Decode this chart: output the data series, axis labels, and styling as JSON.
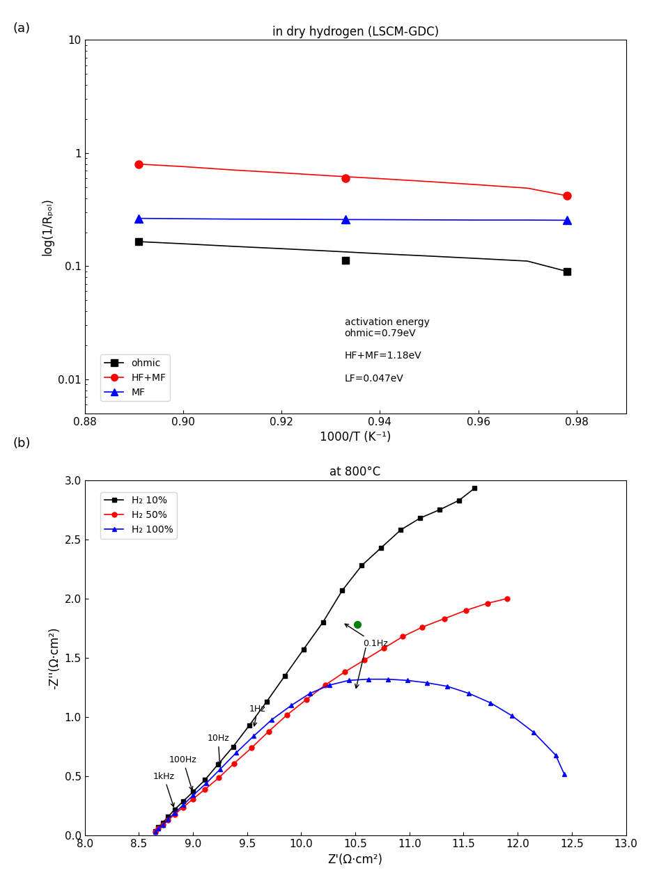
{
  "panel_a": {
    "title": "in dry hydrogen (LSCM-GDC)",
    "xlabel": "1000/T (K⁻¹)",
    "ylabel": "log(1/Rₚₒₗ)",
    "xlim": [
      0.88,
      0.99
    ],
    "ylim_log": [
      0.005,
      10
    ],
    "xticks": [
      0.88,
      0.9,
      0.92,
      0.94,
      0.96,
      0.98
    ],
    "ohmic": {
      "x": [
        0.891,
        0.933,
        0.978
      ],
      "y": [
        0.165,
        0.112,
        0.09
      ],
      "x_line": [
        0.891,
        0.9,
        0.91,
        0.92,
        0.93,
        0.94,
        0.95,
        0.96,
        0.97,
        0.978
      ],
      "y_line": [
        0.165,
        0.158,
        0.15,
        0.143,
        0.136,
        0.129,
        0.123,
        0.117,
        0.111,
        0.09
      ],
      "color": "#000000",
      "marker": "s",
      "label": "ohmic",
      "markersize": 7
    },
    "hfmf": {
      "x": [
        0.891,
        0.933,
        0.978
      ],
      "y": [
        0.8,
        0.6,
        0.42
      ],
      "x_line": [
        0.891,
        0.9,
        0.91,
        0.92,
        0.93,
        0.94,
        0.95,
        0.96,
        0.97,
        0.978
      ],
      "y_line": [
        0.8,
        0.76,
        0.71,
        0.67,
        0.63,
        0.595,
        0.56,
        0.525,
        0.49,
        0.42
      ],
      "color": "#ff0000",
      "marker": "o",
      "label": "HF+MF",
      "markersize": 8
    },
    "mf": {
      "x": [
        0.891,
        0.933,
        0.978
      ],
      "y": [
        0.265,
        0.26,
        0.255
      ],
      "x_line": [
        0.891,
        0.9,
        0.91,
        0.92,
        0.93,
        0.94,
        0.95,
        0.96,
        0.97,
        0.978
      ],
      "y_line": [
        0.265,
        0.263,
        0.261,
        0.26,
        0.259,
        0.258,
        0.257,
        0.256,
        0.256,
        0.255
      ],
      "color": "#0000ff",
      "marker": "^",
      "label": "MF",
      "markersize": 8
    },
    "annotation_text": "activation energy\nohmic=0.79eV\n\nHF+MF=1.18eV\n\nLF=0.047eV"
  },
  "panel_b": {
    "title": "at 800°C",
    "xlabel": "Z'(Ω·cm²)",
    "ylabel": "-Z''(Ω·cm²)",
    "xlim": [
      8.0,
      13.0
    ],
    "ylim": [
      0.0,
      3.0
    ],
    "xticks": [
      8.0,
      8.5,
      9.0,
      9.5,
      10.0,
      10.5,
      11.0,
      11.5,
      12.0,
      12.5,
      13.0
    ],
    "yticks": [
      0.0,
      0.5,
      1.0,
      1.5,
      2.0,
      2.5,
      3.0
    ],
    "h2_10": {
      "x": [
        8.65,
        8.68,
        8.72,
        8.77,
        8.83,
        8.91,
        9.0,
        9.11,
        9.23,
        9.37,
        9.52,
        9.68,
        9.85,
        10.02,
        10.2,
        10.38,
        10.56,
        10.74,
        10.92,
        11.1,
        11.28,
        11.46,
        11.6
      ],
      "y": [
        0.04,
        0.07,
        0.11,
        0.16,
        0.22,
        0.29,
        0.37,
        0.47,
        0.6,
        0.75,
        0.93,
        1.13,
        1.35,
        1.57,
        1.8,
        2.07,
        2.28,
        2.43,
        2.58,
        2.68,
        2.75,
        2.83,
        2.93
      ],
      "color": "#000000",
      "marker": "s",
      "label": "H₂ 10%",
      "markersize": 5
    },
    "h2_50": {
      "x": [
        8.65,
        8.68,
        8.72,
        8.77,
        8.83,
        8.91,
        9.0,
        9.11,
        9.24,
        9.38,
        9.54,
        9.7,
        9.87,
        10.05,
        10.22,
        10.4,
        10.58,
        10.76,
        10.94,
        11.12,
        11.32,
        11.52,
        11.72,
        11.9
      ],
      "y": [
        0.03,
        0.06,
        0.09,
        0.13,
        0.18,
        0.24,
        0.31,
        0.39,
        0.49,
        0.61,
        0.74,
        0.88,
        1.02,
        1.15,
        1.27,
        1.38,
        1.48,
        1.58,
        1.68,
        1.76,
        1.83,
        1.9,
        1.96,
        2.0
      ],
      "color": "#ff0000",
      "marker": "o",
      "label": "H₂ 50%",
      "markersize": 5
    },
    "h2_100": {
      "x": [
        8.65,
        8.68,
        8.72,
        8.77,
        8.83,
        8.91,
        9.0,
        9.12,
        9.25,
        9.4,
        9.56,
        9.73,
        9.91,
        10.08,
        10.26,
        10.44,
        10.62,
        10.8,
        10.98,
        11.16,
        11.35,
        11.55,
        11.75,
        11.95,
        12.15,
        12.35,
        12.43
      ],
      "y": [
        0.03,
        0.06,
        0.09,
        0.14,
        0.19,
        0.26,
        0.34,
        0.44,
        0.56,
        0.7,
        0.84,
        0.98,
        1.1,
        1.2,
        1.27,
        1.31,
        1.32,
        1.32,
        1.31,
        1.29,
        1.26,
        1.2,
        1.12,
        1.01,
        0.87,
        0.68,
        0.52
      ],
      "color": "#0000ff",
      "marker": "^",
      "label": "H₂ 100%",
      "markersize": 5
    },
    "green_dot_x": 10.52,
    "green_dot_y": 1.78
  }
}
